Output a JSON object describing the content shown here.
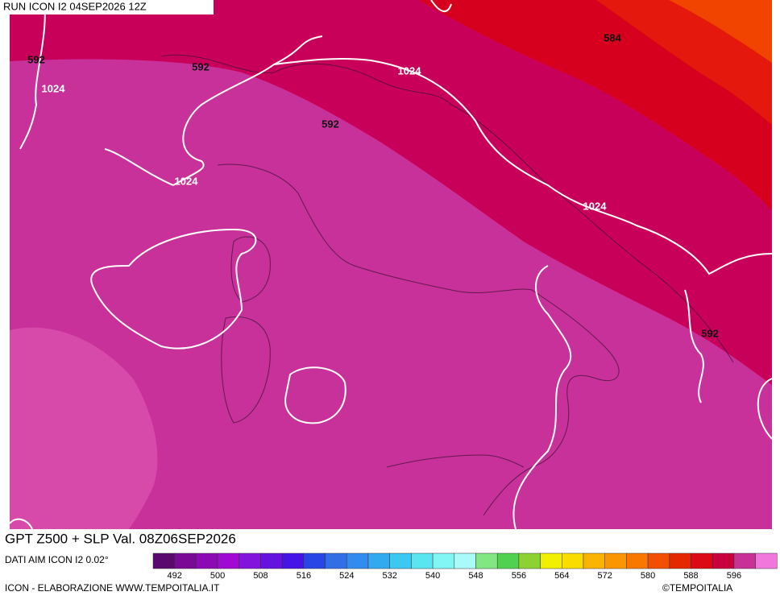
{
  "header": {
    "run": "RUN ICON I2 04SEP2026 12Z"
  },
  "title": "GPT Z500 + SLP Val. 08Z06SEP2026",
  "source": "DATI AIM ICON I2 0.02°",
  "credit": "ICON - ELABORAZIONE WWW.TEMPOITALIA.IT",
  "copyright": "©TEMPOITALIA",
  "contour_labels": [
    592,
    1024,
    592,
    1024,
    592,
    1024,
    1024,
    592,
    584
  ],
  "colorbar": {
    "labels": [
      492,
      500,
      508,
      516,
      524,
      532,
      540,
      548,
      556,
      564,
      572,
      580,
      588,
      596
    ],
    "colors": [
      "#5a0a6e",
      "#7a0a96",
      "#8c0ab4",
      "#a00ad2",
      "#8214dc",
      "#6414dc",
      "#4614e6",
      "#2846e6",
      "#326ee6",
      "#328cf0",
      "#32aaf0",
      "#3cc8f0",
      "#5ae6f0",
      "#82f5f5",
      "#aafafa",
      "#82e682",
      "#50d250",
      "#8cd232",
      "#f0f000",
      "#fadc00",
      "#fab400",
      "#fa9600",
      "#fa7800",
      "#f05000",
      "#e62800",
      "#dc0a14",
      "#c8003c",
      "#c83296",
      "#f078dc"
    ]
  }
}
